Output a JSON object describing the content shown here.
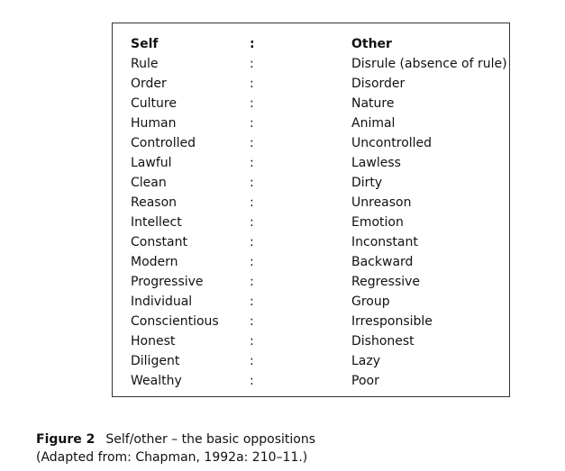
{
  "table": {
    "header": {
      "self": "Self",
      "separator": ":",
      "other": "Other"
    },
    "rows": [
      {
        "self": "Rule",
        "separator": ":",
        "other": "Disrule (absence of rule)"
      },
      {
        "self": "Order",
        "separator": ":",
        "other": "Disorder"
      },
      {
        "self": "Culture",
        "separator": ":",
        "other": "Nature"
      },
      {
        "self": "Human",
        "separator": ":",
        "other": "Animal"
      },
      {
        "self": "Controlled",
        "separator": ":",
        "other": "Uncontrolled"
      },
      {
        "self": "Lawful",
        "separator": ":",
        "other": "Lawless"
      },
      {
        "self": "Clean",
        "separator": ":",
        "other": "Dirty"
      },
      {
        "self": "Reason",
        "separator": ":",
        "other": "Unreason"
      },
      {
        "self": "Intellect",
        "separator": ":",
        "other": "Emotion"
      },
      {
        "self": "Constant",
        "separator": ":",
        "other": "Inconstant"
      },
      {
        "self": "Modern",
        "separator": ":",
        "other": "Backward"
      },
      {
        "self": "Progressive",
        "separator": ":",
        "other": "Regressive"
      },
      {
        "self": "Individual",
        "separator": ":",
        "other": "Group"
      },
      {
        "self": "Conscientious",
        "separator": ":",
        "other": "Irresponsible"
      },
      {
        "self": "Honest",
        "separator": ":",
        "other": "Dishonest"
      },
      {
        "self": "Diligent",
        "separator": ":",
        "other": "Lazy"
      },
      {
        "self": "Wealthy",
        "separator": ":",
        "other": "Poor"
      }
    ]
  },
  "caption": {
    "label": "Figure 2",
    "title": "Self/other – the basic oppositions",
    "source": "(Adapted from: Chapman, 1992a: 210–11.)"
  }
}
